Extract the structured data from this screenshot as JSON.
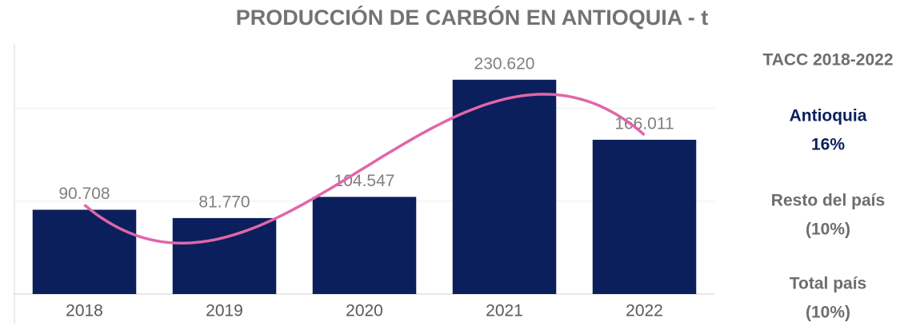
{
  "chart_data": {
    "type": "bar",
    "title": "PRODUCCIÓN DE CARBÓN EN ANTIOQUIA - t",
    "categories": [
      "2018",
      "2019",
      "2020",
      "2021",
      "2022"
    ],
    "values": [
      90708,
      81770,
      104547,
      230620,
      166011
    ],
    "value_labels": [
      "90.708",
      "81.770",
      "104.547",
      "230.620",
      "166.011"
    ],
    "color": "#0b1f5c",
    "ylim": [
      0,
      270000
    ],
    "yticks": [
      0,
      100000,
      200000
    ],
    "grid": true,
    "trendline": {
      "order": 3,
      "color": "#e066a8"
    },
    "side_panel": {
      "title": "TACC 2018-2022",
      "items": [
        {
          "label": "Antioquia",
          "value": "16%",
          "color": "#0b1f5c"
        },
        {
          "label": "Resto del país",
          "value": "(10%)",
          "color": "#6d6d6d"
        },
        {
          "label": "Total país",
          "value": "(10%)",
          "color": "#6d6d6d"
        }
      ]
    }
  }
}
